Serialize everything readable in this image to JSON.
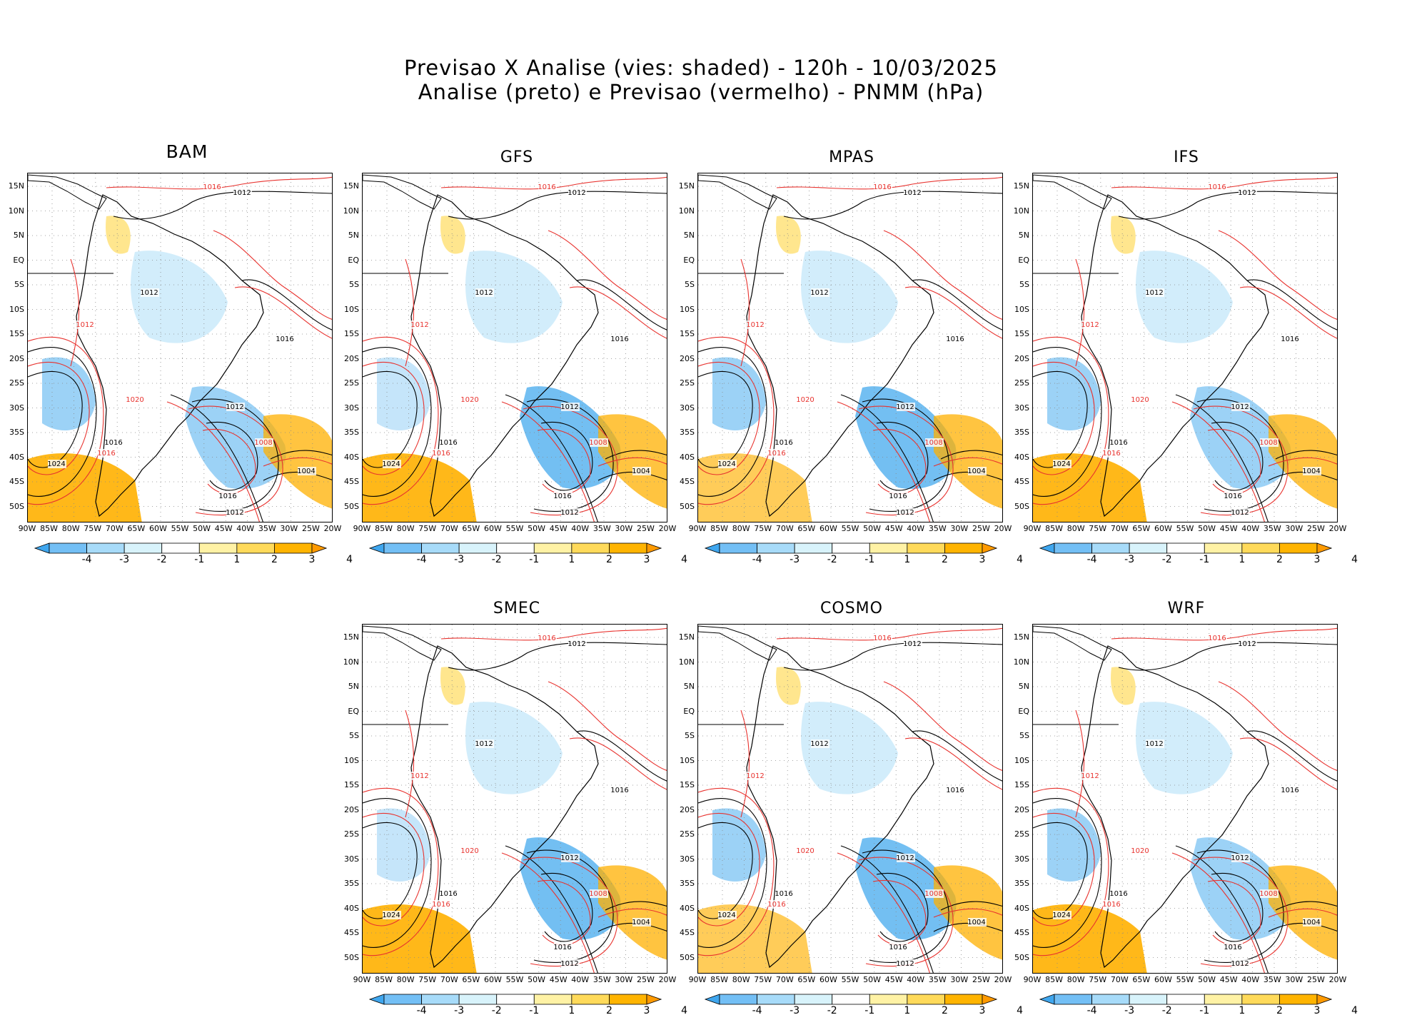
{
  "title_line1": "Previsao X Analise (vies: shaded) - 120h - 10/03/2025",
  "title_line2": "Analise (preto) e Previsao (vermelho) - PNMM (hPa)",
  "lat_labels": [
    "15N",
    "10N",
    "5N",
    "EQ",
    "5S",
    "10S",
    "15S",
    "20S",
    "25S",
    "30S",
    "35S",
    "40S",
    "45S",
    "50S"
  ],
  "lon_labels": [
    "90W",
    "85W",
    "80W",
    "75W",
    "70W",
    "65W",
    "60W",
    "55W",
    "50W",
    "45W",
    "40W",
    "35W",
    "30W",
    "25W",
    "20W"
  ],
  "colorbar": {
    "labels": [
      "-4",
      "-3",
      "-2",
      "-1",
      "1",
      "2",
      "3",
      "4"
    ],
    "colors": [
      "#3fa6ee",
      "#73bff5",
      "#a7dbf9",
      "#d8f3fb",
      "#ffffff",
      "#fff2a5",
      "#ffda5a",
      "#ffb400",
      "#ff9a00"
    ]
  },
  "colors": {
    "analysis": "#000000",
    "forecast": "#e8322e",
    "negative": "#5ab4f0",
    "positive": "#ffb000"
  },
  "panels": [
    {
      "name": "BAM",
      "title": "BAM"
    },
    {
      "name": "GFS",
      "title": "GFS"
    },
    {
      "name": "MPAS",
      "title": "MPAS"
    },
    {
      "name": "IFS",
      "title": "IFS"
    },
    {
      "name": "SMEC",
      "title": "SMEC"
    },
    {
      "name": "COSMO",
      "title": "COSMO"
    },
    {
      "name": "WRF",
      "title": "WRF"
    }
  ],
  "isobar_labels": [
    "1024",
    "1020",
    "1016",
    "1012",
    "1008",
    "1004"
  ]
}
